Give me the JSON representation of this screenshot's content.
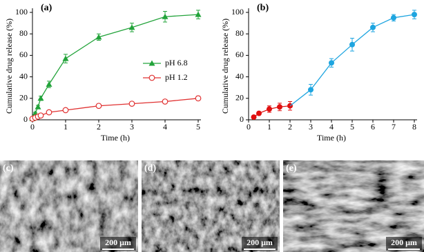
{
  "chart_data": [
    {
      "type": "line",
      "title": "(a)",
      "x_label": "Time (h)",
      "y_label": "Cumulative drug release (%)",
      "x": [
        0,
        0.083,
        0.167,
        0.25,
        0.5,
        1,
        2,
        3,
        4,
        5
      ],
      "series": [
        {
          "name": "pH 6.8",
          "color": "#22a33a",
          "marker": "triangle",
          "values": [
            1,
            6,
            12,
            20,
            33,
            57,
            77,
            86,
            96,
            98
          ],
          "errors": [
            0.5,
            1,
            1.5,
            2,
            3,
            4,
            3,
            4,
            5,
            4
          ]
        },
        {
          "name": "pH 1.2",
          "color": "#e03030",
          "marker": "open-circle",
          "values": [
            1,
            2,
            3,
            4,
            7,
            9,
            13,
            15,
            17,
            20
          ],
          "errors": [
            0.5,
            0.5,
            1,
            1,
            1.5,
            1.5,
            1.5,
            1.5,
            1.5,
            2
          ]
        }
      ],
      "xlim": [
        0,
        5
      ],
      "xticks": [
        0,
        1,
        2,
        3,
        4,
        5
      ],
      "ylim": [
        0,
        100
      ],
      "yticks": [
        0,
        20,
        40,
        60,
        80,
        100
      ],
      "legend": "center-right"
    },
    {
      "type": "line",
      "title": "(b)",
      "x_label": "Time (h)",
      "y_label": "Cumulative drug release (%)",
      "x": [
        0.25,
        0.5,
        1,
        1.5,
        2,
        3,
        4,
        5,
        6,
        7,
        8
      ],
      "series": [
        {
          "color": "#e01010",
          "marker": "circle",
          "values": [
            2.5,
            6,
            10,
            12,
            13,
            null,
            null,
            null,
            null,
            null,
            null
          ],
          "errors": [
            1,
            1.5,
            3,
            3.5,
            4,
            null,
            null,
            null,
            null,
            null,
            null
          ]
        },
        {
          "color": "#1ea5e0",
          "marker": "circle",
          "values": [
            null,
            null,
            null,
            null,
            null,
            28,
            53,
            70,
            86,
            95,
            98
          ],
          "errors": [
            null,
            null,
            null,
            null,
            null,
            5,
            4,
            6,
            4,
            3,
            4
          ]
        }
      ],
      "xlim": [
        0,
        8
      ],
      "xticks": [
        0,
        1,
        2,
        3,
        4,
        5,
        6,
        7,
        8
      ],
      "ylim": [
        0,
        100
      ],
      "yticks": [
        0,
        20,
        40,
        60,
        80,
        100
      ]
    }
  ],
  "panels": [
    {
      "label": "(c)",
      "scale_bar": "200 μm"
    },
    {
      "label": "(d)",
      "scale_bar": "200 μm"
    },
    {
      "label": "(e)",
      "scale_bar": "200 μm"
    }
  ]
}
